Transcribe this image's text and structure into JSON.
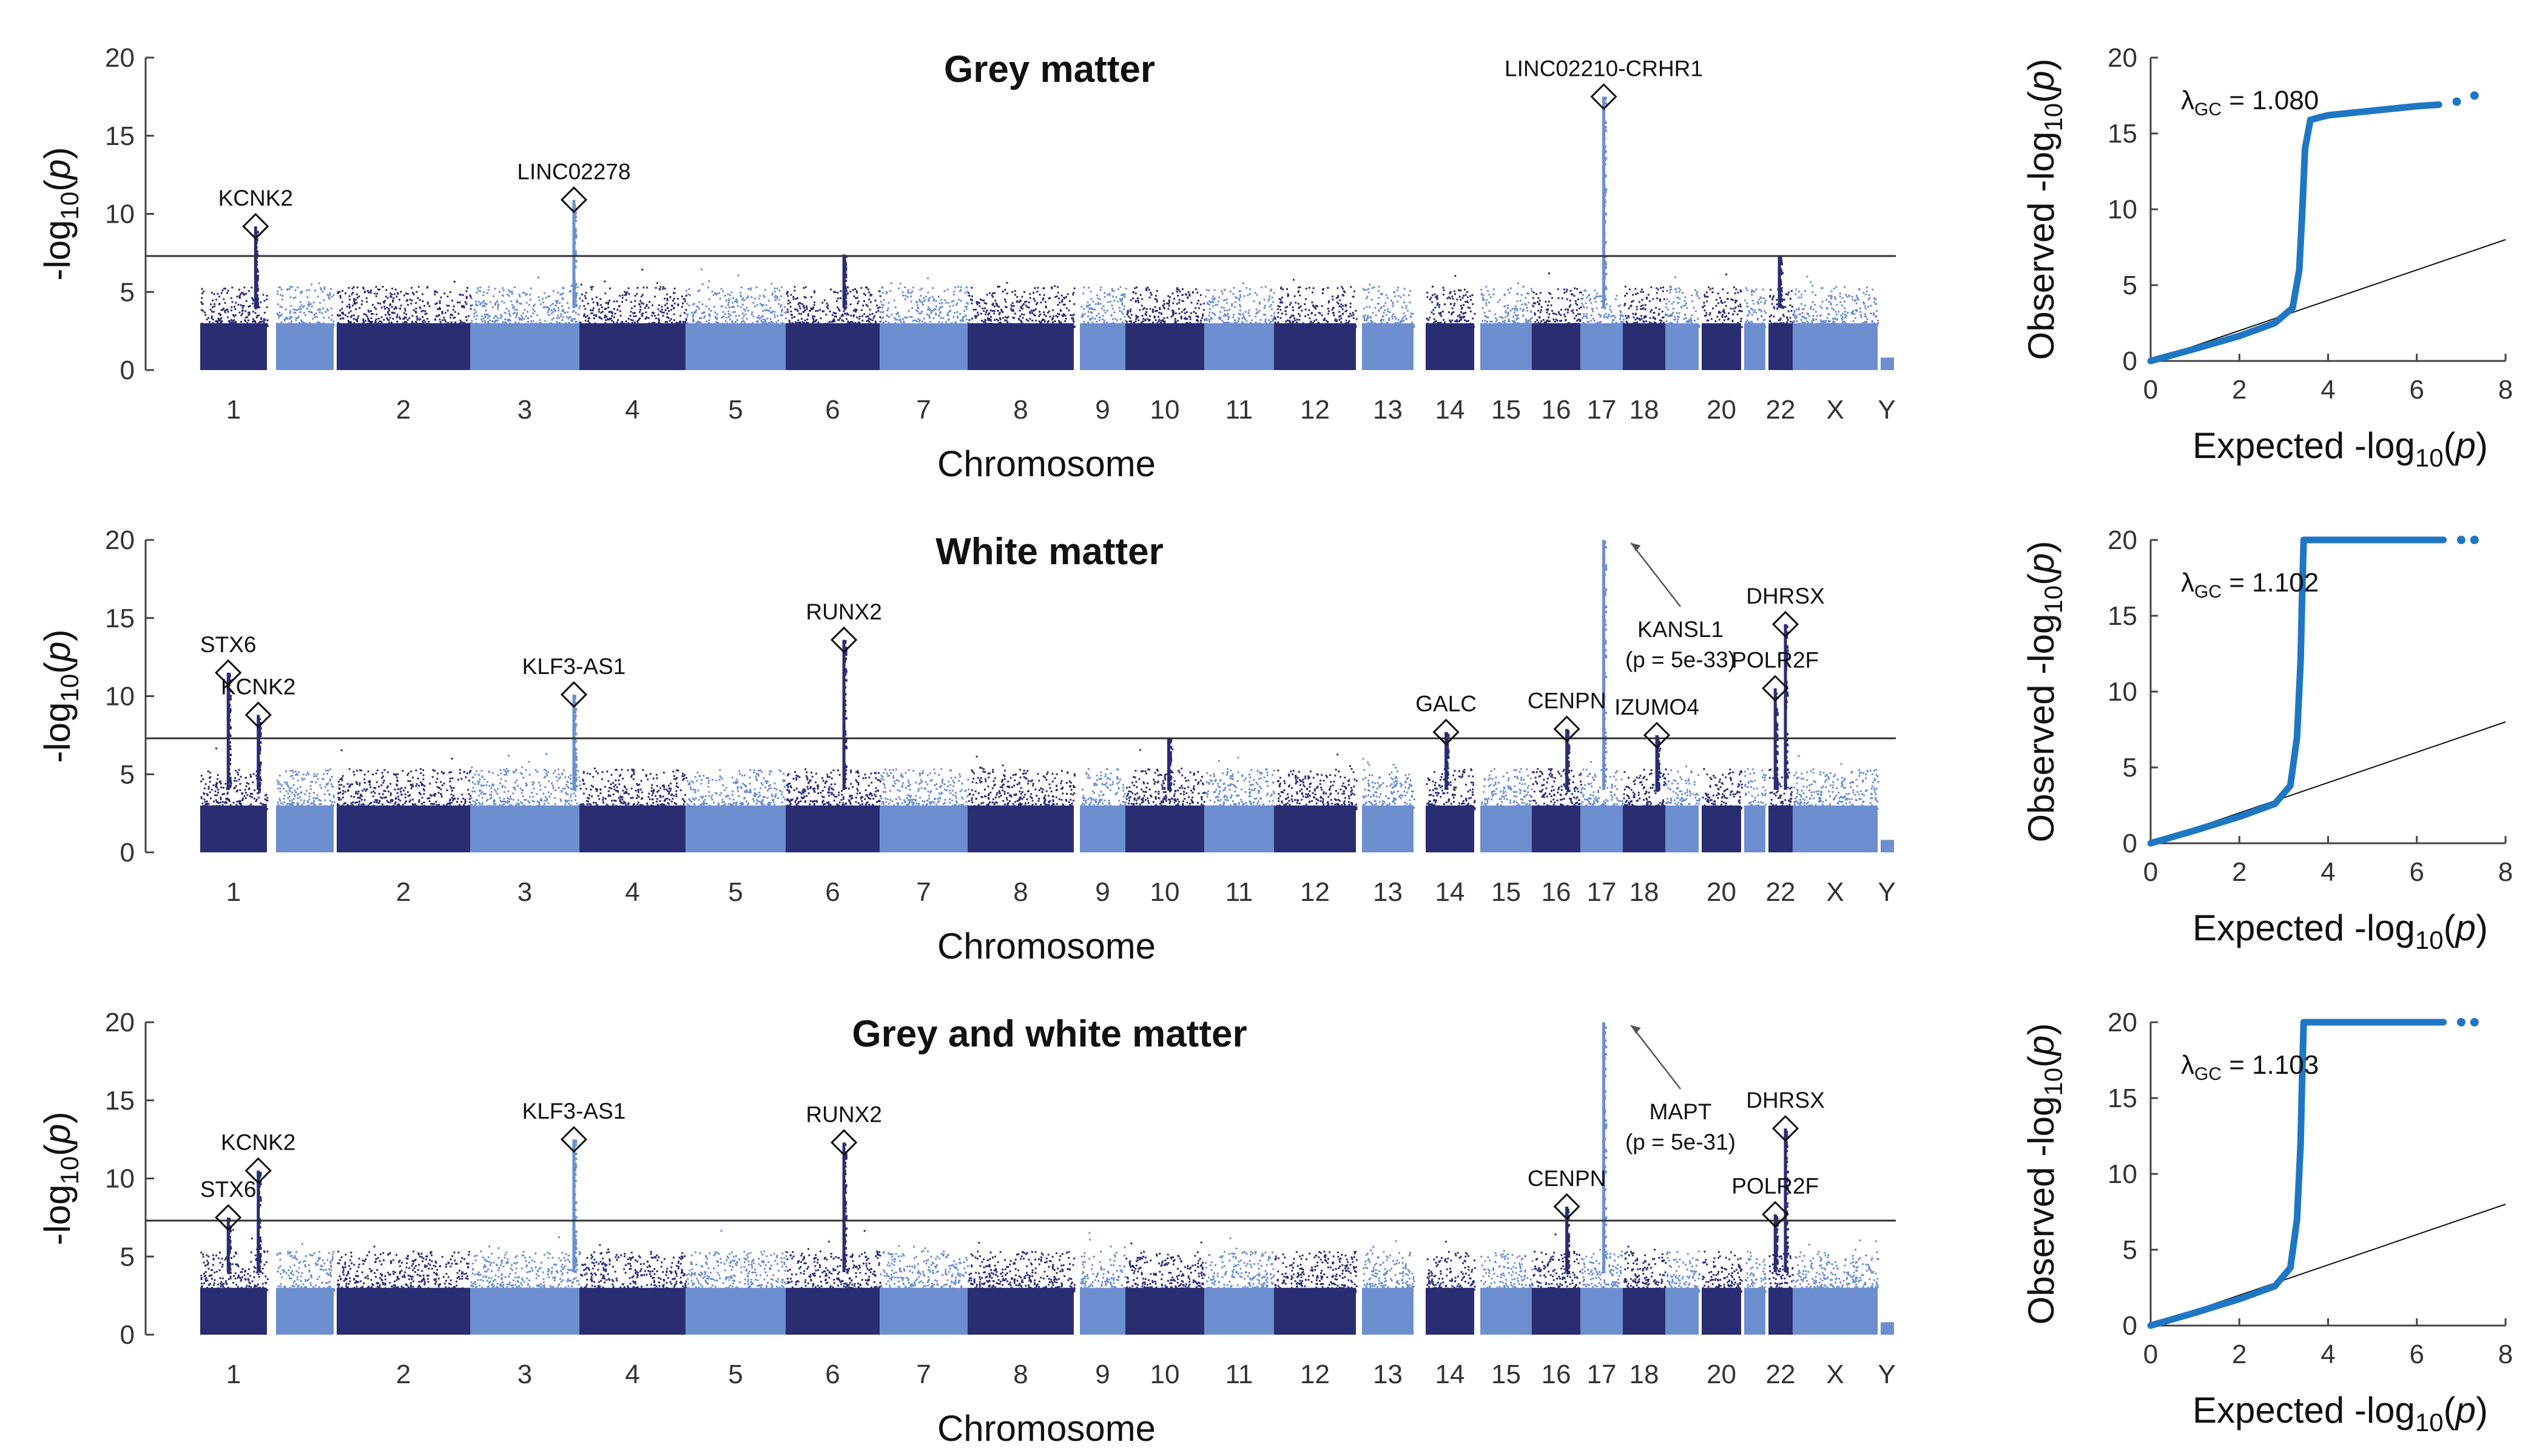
{
  "chart_data": [
    {
      "type": "scatter",
      "kind": "manhattan",
      "title": "Grey matter",
      "xlabel": "Chromosome",
      "ylabel": "-log10(p)",
      "ylim": [
        0,
        20
      ],
      "yticks": [
        0,
        5,
        10,
        15,
        20
      ],
      "threshold": 7.3,
      "chromosomes": [
        "1",
        "2",
        "3",
        "4",
        "5",
        "6",
        "7",
        "8",
        "9",
        "10",
        "11",
        "12",
        "13",
        "14",
        "15",
        "16",
        "17",
        "18",
        "20",
        "22",
        "X",
        "Y"
      ],
      "colors": {
        "dark": "#2a2d72",
        "light": "#6e8fcf"
      },
      "peaks": [
        {
          "chromosome": "1",
          "position": 0.83,
          "value": 9.2
        },
        {
          "chromosome": "3",
          "position": 0.95,
          "value": 10.9
        },
        {
          "chromosome": "6",
          "position": 0.62,
          "value": 7.4
        },
        {
          "chromosome": "17",
          "position": 0.55,
          "value": 17.5
        },
        {
          "chromosome": "22",
          "position": 0.45,
          "value": 7.3
        }
      ],
      "labels": [
        {
          "text": "KCNK2",
          "chromosome": "1",
          "position": 0.83,
          "value": 9.2
        },
        {
          "text": "LINC02278",
          "chromosome": "3",
          "position": 0.95,
          "value": 10.9
        },
        {
          "text": "LINC02210-CRHR1",
          "chromosome": "17",
          "position": 0.55,
          "value": 17.5
        }
      ]
    },
    {
      "type": "scatter",
      "kind": "manhattan",
      "title": "White matter",
      "xlabel": "Chromosome",
      "ylabel": "-log10(p)",
      "ylim": [
        0,
        20
      ],
      "yticks": [
        0,
        5,
        10,
        15,
        20
      ],
      "threshold": 7.3,
      "chromosomes": [
        "1",
        "2",
        "3",
        "4",
        "5",
        "6",
        "7",
        "8",
        "9",
        "10",
        "11",
        "12",
        "13",
        "14",
        "15",
        "16",
        "17",
        "18",
        "20",
        "22",
        "X",
        "Y"
      ],
      "colors": {
        "dark": "#2a2d72",
        "light": "#6e8fcf"
      },
      "peaks": [
        {
          "chromosome": "1",
          "position": 0.42,
          "value": 11.5
        },
        {
          "chromosome": "1",
          "position": 0.87,
          "value": 8.8
        },
        {
          "chromosome": "3",
          "position": 0.95,
          "value": 10.1
        },
        {
          "chromosome": "6",
          "position": 0.62,
          "value": 13.6
        },
        {
          "chromosome": "10",
          "position": 0.55,
          "value": 7.3
        },
        {
          "chromosome": "14",
          "position": 0.42,
          "value": 7.7
        },
        {
          "chromosome": "16",
          "position": 0.72,
          "value": 7.9
        },
        {
          "chromosome": "17",
          "position": 0.55,
          "value": 20
        },
        {
          "chromosome": "18",
          "position": 0.8,
          "value": 7.5
        },
        {
          "chromosome": "22",
          "position": 0.28,
          "value": 10.5
        },
        {
          "chromosome": "22",
          "position": 0.7,
          "value": 14.6
        }
      ],
      "labels": [
        {
          "text": "STX6",
          "chromosome": "1",
          "position": 0.42,
          "value": 11.5
        },
        {
          "text": "KCNK2",
          "chromosome": "1",
          "position": 0.87,
          "value": 8.8
        },
        {
          "text": "KLF3-AS1",
          "chromosome": "3",
          "position": 0.95,
          "value": 10.1
        },
        {
          "text": "RUNX2",
          "chromosome": "6",
          "position": 0.62,
          "value": 13.6
        },
        {
          "text": "GALC",
          "chromosome": "14",
          "position": 0.42,
          "value": 7.7
        },
        {
          "text": "CENPN",
          "chromosome": "16",
          "position": 0.72,
          "value": 7.9
        },
        {
          "text": "IZUMO4",
          "chromosome": "18",
          "position": 0.8,
          "value": 7.5
        },
        {
          "text": "POLR2F",
          "chromosome": "22",
          "position": 0.28,
          "value": 10.5
        },
        {
          "text": "DHRSX",
          "chromosome": "22",
          "position": 0.7,
          "value": 14.6
        }
      ],
      "offscale_annotation": {
        "gene": "KANSL1",
        "p": "(p = 5e-33)"
      }
    },
    {
      "type": "scatter",
      "kind": "manhattan",
      "title": "Grey and white matter",
      "xlabel": "Chromosome",
      "ylabel": "-log10(p)",
      "ylim": [
        0,
        20
      ],
      "yticks": [
        0,
        5,
        10,
        15,
        20
      ],
      "threshold": 7.3,
      "chromosomes": [
        "1",
        "2",
        "3",
        "4",
        "5",
        "6",
        "7",
        "8",
        "9",
        "10",
        "11",
        "12",
        "13",
        "14",
        "15",
        "16",
        "17",
        "18",
        "20",
        "22",
        "X",
        "Y"
      ],
      "colors": {
        "dark": "#2a2d72",
        "light": "#6e8fcf"
      },
      "peaks": [
        {
          "chromosome": "1",
          "position": 0.42,
          "value": 7.5
        },
        {
          "chromosome": "1",
          "position": 0.87,
          "value": 10.5
        },
        {
          "chromosome": "3",
          "position": 0.95,
          "value": 12.5
        },
        {
          "chromosome": "6",
          "position": 0.62,
          "value": 12.3
        },
        {
          "chromosome": "16",
          "position": 0.72,
          "value": 8.2
        },
        {
          "chromosome": "17",
          "position": 0.55,
          "value": 20
        },
        {
          "chromosome": "22",
          "position": 0.28,
          "value": 7.7
        },
        {
          "chromosome": "22",
          "position": 0.7,
          "value": 13.2
        }
      ],
      "labels": [
        {
          "text": "STX6",
          "chromosome": "1",
          "position": 0.42,
          "value": 7.5
        },
        {
          "text": "KCNK2",
          "chromosome": "1",
          "position": 0.87,
          "value": 10.5
        },
        {
          "text": "KLF3-AS1",
          "chromosome": "3",
          "position": 0.95,
          "value": 12.5
        },
        {
          "text": "RUNX2",
          "chromosome": "6",
          "position": 0.62,
          "value": 12.3
        },
        {
          "text": "CENPN",
          "chromosome": "16",
          "position": 0.72,
          "value": 8.2
        },
        {
          "text": "POLR2F",
          "chromosome": "22",
          "position": 0.28,
          "value": 7.7
        },
        {
          "text": "DHRSX",
          "chromosome": "22",
          "position": 0.7,
          "value": 13.2
        }
      ],
      "offscale_annotation": {
        "gene": "MAPT",
        "p": "(p = 5e-31)"
      }
    },
    {
      "type": "scatter",
      "kind": "qq",
      "xlabel": "Expected -log10(p)",
      "ylabel": "Observed -log10(p)",
      "xlim": [
        0,
        8
      ],
      "ylim": [
        0,
        20
      ],
      "xticks": [
        0,
        2,
        4,
        6,
        8
      ],
      "yticks": [
        0,
        5,
        10,
        15,
        20
      ],
      "lambda_label": "λGC = 1.080",
      "color": "#1f77c4",
      "curve": [
        [
          0,
          0
        ],
        [
          1,
          0.8
        ],
        [
          2,
          1.65
        ],
        [
          2.8,
          2.5
        ],
        [
          3.2,
          3.5
        ],
        [
          3.35,
          6
        ],
        [
          3.42,
          10
        ],
        [
          3.48,
          14
        ],
        [
          3.6,
          15.9
        ],
        [
          4,
          16.2
        ],
        [
          5,
          16.5
        ],
        [
          6,
          16.8
        ],
        [
          6.5,
          16.9
        ]
      ],
      "outliers": [
        [
          6.9,
          17.1
        ],
        [
          7.3,
          17.5
        ]
      ]
    },
    {
      "type": "scatter",
      "kind": "qq",
      "xlabel": "Expected -log10(p)",
      "ylabel": "Observed -log10(p)",
      "xlim": [
        0,
        8
      ],
      "ylim": [
        0,
        20
      ],
      "xticks": [
        0,
        2,
        4,
        6,
        8
      ],
      "yticks": [
        0,
        5,
        10,
        15,
        20
      ],
      "lambda_label": "λGC = 1.102",
      "color": "#1f77c4",
      "curve": [
        [
          0,
          0
        ],
        [
          1,
          0.85
        ],
        [
          2,
          1.75
        ],
        [
          2.8,
          2.6
        ],
        [
          3.15,
          3.8
        ],
        [
          3.3,
          7
        ],
        [
          3.38,
          12
        ],
        [
          3.42,
          17
        ],
        [
          3.45,
          20
        ],
        [
          4,
          20
        ],
        [
          5,
          20
        ],
        [
          6,
          20
        ],
        [
          6.6,
          20
        ]
      ],
      "outliers": [
        [
          7,
          20
        ],
        [
          7.3,
          20
        ]
      ]
    },
    {
      "type": "scatter",
      "kind": "qq",
      "xlabel": "Expected -log10(p)",
      "ylabel": "Observed -log10(p)",
      "xlim": [
        0,
        8
      ],
      "ylim": [
        0,
        20
      ],
      "xticks": [
        0,
        2,
        4,
        6,
        8
      ],
      "yticks": [
        0,
        5,
        10,
        15,
        20
      ],
      "lambda_label": "λGC = 1.103",
      "color": "#1f77c4",
      "curve": [
        [
          0,
          0
        ],
        [
          1,
          0.85
        ],
        [
          2,
          1.75
        ],
        [
          2.8,
          2.6
        ],
        [
          3.15,
          3.8
        ],
        [
          3.3,
          7
        ],
        [
          3.38,
          12
        ],
        [
          3.42,
          17
        ],
        [
          3.45,
          20
        ],
        [
          4,
          20
        ],
        [
          5,
          20
        ],
        [
          6,
          20
        ],
        [
          6.6,
          20
        ]
      ],
      "outliers": [
        [
          7,
          20
        ],
        [
          7.3,
          20
        ]
      ]
    }
  ]
}
